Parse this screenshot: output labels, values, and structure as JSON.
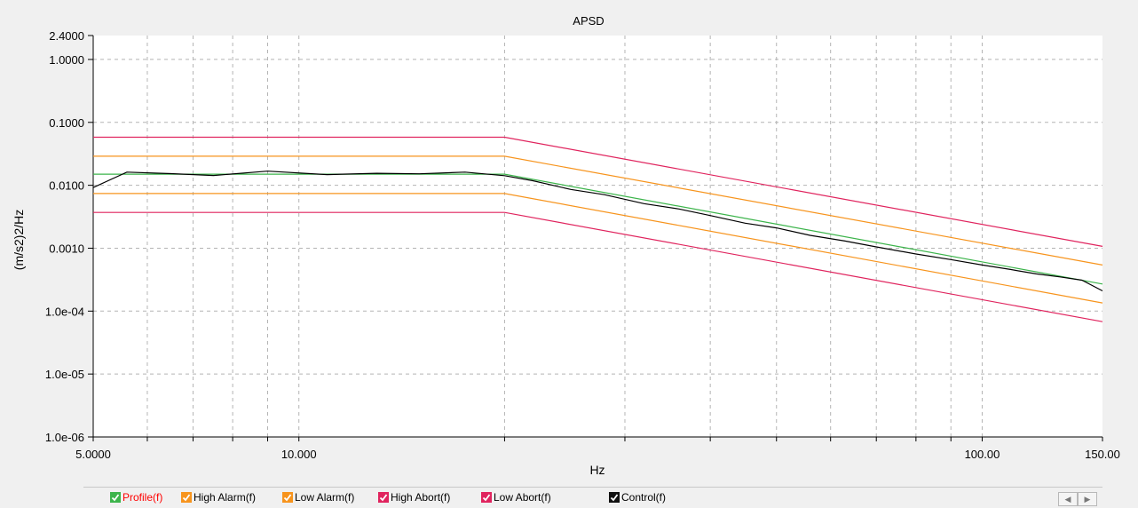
{
  "chart_data": {
    "type": "line",
    "title": "APSD",
    "xlabel": "Hz",
    "ylabel": "(m/s2)2/Hz",
    "xscale": "log",
    "yscale": "log",
    "xlim": [
      5.0,
      150.0
    ],
    "ylim": [
      1e-06,
      2.4
    ],
    "x_tick_labels": [
      {
        "value": 5,
        "label": "5.0000"
      },
      {
        "value": 10,
        "label": "10.000"
      },
      {
        "value": 100,
        "label": "100.00"
      },
      {
        "value": 150,
        "label": "150.00"
      }
    ],
    "y_tick_labels": [
      {
        "value": 2.4,
        "label": "2.4000"
      },
      {
        "value": 1.0,
        "label": "1.0000"
      },
      {
        "value": 0.1,
        "label": "0.1000"
      },
      {
        "value": 0.01,
        "label": "0.0100"
      },
      {
        "value": 0.001,
        "label": "0.0010"
      },
      {
        "value": 0.0001,
        "label": "1.0e-04"
      },
      {
        "value": 1e-05,
        "label": "1.0e-05"
      },
      {
        "value": 1e-06,
        "label": "1.0e-06"
      }
    ],
    "grid": true,
    "legend_position": "bottom",
    "series": [
      {
        "name": "Profile(f)",
        "color": "#3cb44b",
        "x": [
          5,
          20,
          150
        ],
        "y": [
          0.015,
          0.015,
          0.00027
        ]
      },
      {
        "name": "High Alarm(f)",
        "color": "#f7941d",
        "x": [
          5,
          20,
          150
        ],
        "y": [
          0.029,
          0.029,
          0.00054
        ]
      },
      {
        "name": "Low Alarm(f)",
        "color": "#f7941d",
        "x": [
          5,
          20,
          150
        ],
        "y": [
          0.0074,
          0.0074,
          0.000135
        ]
      },
      {
        "name": "High Abort(f)",
        "color": "#e0245e",
        "x": [
          5,
          20,
          150
        ],
        "y": [
          0.058,
          0.058,
          0.00107
        ]
      },
      {
        "name": "Low Abort(f)",
        "color": "#e0245e",
        "x": [
          5,
          20,
          150
        ],
        "y": [
          0.0037,
          0.0037,
          6.8e-05
        ]
      },
      {
        "name": "Control(f)",
        "color": "#000000",
        "x": [
          5.0,
          5.6,
          6.5,
          7.5,
          9.0,
          11.0,
          13.0,
          15.0,
          17.5,
          20.0,
          22.0,
          25.0,
          28.0,
          32.0,
          36.0,
          40.0,
          45.0,
          50.0,
          56.0,
          63.0,
          70.0,
          80.0,
          90.0,
          100.0,
          110.0,
          120.0,
          130.0,
          140.0,
          150.0
        ],
        "y": [
          0.0092,
          0.0162,
          0.0153,
          0.0143,
          0.0168,
          0.0148,
          0.0155,
          0.0152,
          0.0162,
          0.0142,
          0.0118,
          0.0086,
          0.0071,
          0.0051,
          0.0042,
          0.0033,
          0.0025,
          0.0021,
          0.0016,
          0.0013,
          0.00105,
          0.00081,
          0.00066,
          0.00054,
          0.00046,
          0.00039,
          0.00035,
          0.00031,
          0.00021
        ]
      }
    ]
  },
  "legend": {
    "items": [
      {
        "label": "Profile(f)",
        "text_color": "#ff0000",
        "box_color": "#3cb44b"
      },
      {
        "label": "High Alarm(f)",
        "text_color": "#000000",
        "box_color": "#f7941d"
      },
      {
        "label": "Low Alarm(f)",
        "text_color": "#000000",
        "box_color": "#f7941d"
      },
      {
        "label": "High Abort(f)",
        "text_color": "#000000",
        "box_color": "#e0245e"
      },
      {
        "label": "Low Abort(f)",
        "text_color": "#000000",
        "box_color": "#e0245e"
      },
      {
        "label": "Control(f)",
        "text_color": "#000000",
        "box_color": "#111111"
      }
    ]
  },
  "scrollbar": {
    "left_arrow": "◀",
    "right_arrow": "▶"
  }
}
